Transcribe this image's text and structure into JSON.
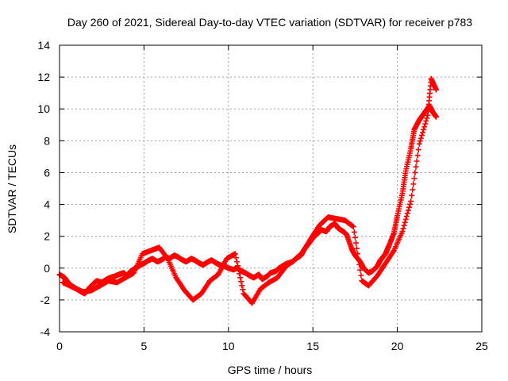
{
  "chart_data": {
    "type": "scatter",
    "title": "Day 260 of 2021, Sidereal Day-to-day VTEC variation (SDTVAR) for receiver p783",
    "xlabel": "GPS time / hours",
    "ylabel": "SDTVAR / TECUs",
    "xlim": [
      0,
      25
    ],
    "ylim": [
      -4,
      14
    ],
    "xticks": [
      0,
      5,
      10,
      15,
      20,
      25
    ],
    "yticks": [
      -4,
      -2,
      0,
      2,
      4,
      6,
      8,
      10,
      12,
      14
    ],
    "grid": true,
    "marker": "+",
    "colors": {
      "series": "#ff0000",
      "grid": "#a0a0a0",
      "axis": "#000000"
    },
    "series": [
      {
        "name": "SDTVAR",
        "x": [
          0.0,
          0.3,
          0.5,
          0.7,
          1.0,
          1.3,
          1.5,
          1.8,
          2.0,
          2.2,
          2.5,
          2.8,
          3.0,
          3.3,
          3.5,
          3.8,
          4.0,
          4.2,
          4.5,
          4.8,
          5.0,
          5.3,
          5.5,
          5.8,
          6.0,
          6.3,
          6.5,
          6.8,
          7.0,
          7.3,
          7.5,
          7.8,
          8.0,
          8.3,
          8.5,
          8.8,
          9.0,
          9.3,
          9.5,
          9.8,
          10.0,
          10.3,
          10.5,
          10.8,
          11.0,
          11.3,
          11.5,
          11.8,
          12.0,
          12.3,
          12.5,
          12.8,
          13.0,
          13.3,
          13.5,
          13.8,
          14.0,
          14.3,
          14.5,
          14.8,
          15.0,
          15.3,
          15.5,
          15.8,
          16.0,
          16.3,
          16.5,
          16.8,
          17.0,
          17.3,
          17.5,
          17.8,
          18.0,
          18.3,
          18.5,
          18.8,
          19.0,
          19.3,
          19.5,
          19.8,
          20.0,
          20.3,
          20.5,
          20.8,
          21.0,
          21.3,
          21.5,
          21.7,
          21.9,
          22.1,
          22.3
        ],
        "y": [
          -0.4,
          -0.6,
          -0.9,
          -1.1,
          -1.3,
          -1.5,
          -1.6,
          -1.2,
          -1.0,
          -0.8,
          -0.9,
          -0.7,
          -0.6,
          -0.5,
          -0.4,
          -0.3,
          -0.5,
          -0.2,
          0.0,
          0.2,
          0.3,
          0.5,
          0.6,
          0.4,
          0.5,
          0.7,
          0.6,
          0.8,
          0.7,
          0.5,
          0.4,
          0.6,
          0.5,
          0.3,
          0.2,
          0.4,
          0.5,
          0.3,
          0.2,
          0.1,
          0.0,
          -0.1,
          0.0,
          -0.2,
          -0.3,
          -0.5,
          -0.6,
          -0.4,
          -0.7,
          -0.5,
          -0.3,
          -0.2,
          0.0,
          0.2,
          0.3,
          0.4,
          0.6,
          0.8,
          1.2,
          1.6,
          1.9,
          2.2,
          2.4,
          2.3,
          2.6,
          2.8,
          2.5,
          2.3,
          2.1,
          1.2,
          0.8,
          0.4,
          0.0,
          -0.3,
          -0.2,
          0.1,
          0.5,
          0.9,
          1.4,
          2.2,
          3.3,
          4.7,
          6.1,
          7.5,
          8.7,
          9.3,
          9.6,
          9.9,
          10.2,
          9.8,
          9.5
        ],
        "x2": [
          0.2,
          0.6,
          1.0,
          1.4,
          1.9,
          2.4,
          2.9,
          3.4,
          3.9,
          4.4,
          4.9,
          5.4,
          5.9,
          6.4,
          6.9,
          7.4,
          7.9,
          8.4,
          8.9,
          9.4,
          9.9,
          10.4,
          10.9,
          11.4,
          11.9,
          12.4,
          12.9,
          13.4,
          13.9,
          14.4,
          14.9,
          15.4,
          15.9,
          16.4,
          16.9,
          17.4,
          17.9,
          18.3,
          18.8,
          19.3,
          19.8,
          20.3,
          20.8,
          21.3,
          21.8,
          22.0,
          22.3
        ],
        "y2": [
          -0.9,
          -1.1,
          -1.3,
          -1.5,
          -1.4,
          -1.1,
          -0.8,
          -0.9,
          -0.6,
          -0.3,
          0.9,
          1.1,
          1.3,
          0.6,
          -0.6,
          -1.4,
          -2.0,
          -1.6,
          -0.8,
          -0.4,
          0.6,
          0.9,
          -1.6,
          -2.2,
          -1.3,
          -0.9,
          -0.6,
          0.1,
          0.5,
          1.0,
          1.9,
          2.7,
          3.2,
          3.1,
          3.0,
          2.6,
          -0.8,
          -1.1,
          -0.5,
          0.3,
          1.1,
          2.3,
          4.2,
          7.8,
          9.6,
          11.9,
          11.2
        ]
      }
    ]
  }
}
